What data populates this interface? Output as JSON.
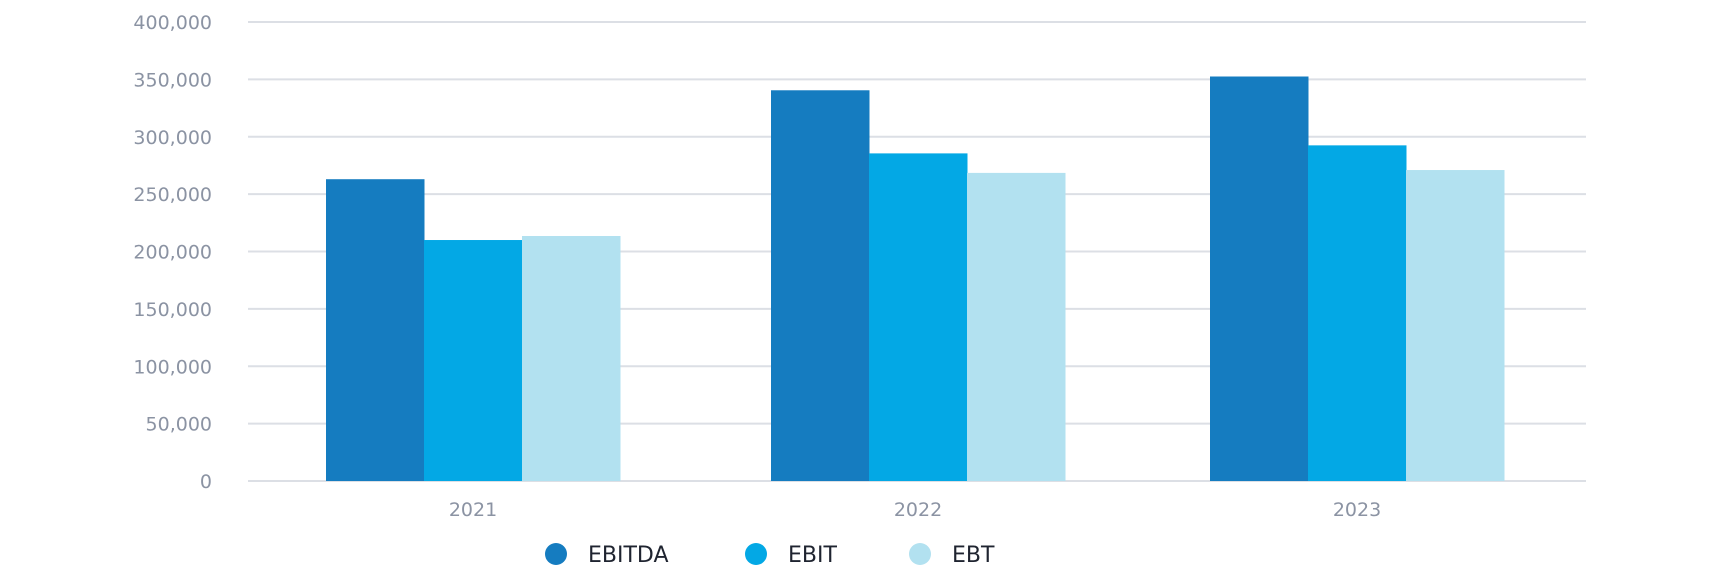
{
  "chart_data": {
    "type": "bar",
    "categories": [
      "2021",
      "2022",
      "2023"
    ],
    "series": [
      {
        "name": "EBITDA",
        "color": "#157cc0",
        "values": [
          263000,
          340500,
          352500
        ]
      },
      {
        "name": "EBIT",
        "color": "#03a8e5",
        "values": [
          210000,
          285500,
          292500
        ]
      },
      {
        "name": "EBT",
        "color": "#b2e1f0",
        "values": [
          213500,
          268500,
          271000
        ]
      }
    ],
    "ylim": [
      0,
      400000
    ],
    "yticks": [
      "0",
      "50,000",
      "100,000",
      "150,000",
      "200,000",
      "250,000",
      "300,000",
      "350,000",
      "400,000"
    ],
    "ytick_values": [
      0,
      50000,
      100000,
      150000,
      200000,
      250000,
      300000,
      350000,
      400000
    ],
    "grid": "horizontal",
    "legend_position": "bottom-center",
    "colors": {
      "grid": "#dcdfe5",
      "tick_text": "#8b93a3",
      "legend_text": "#1f2430"
    }
  }
}
